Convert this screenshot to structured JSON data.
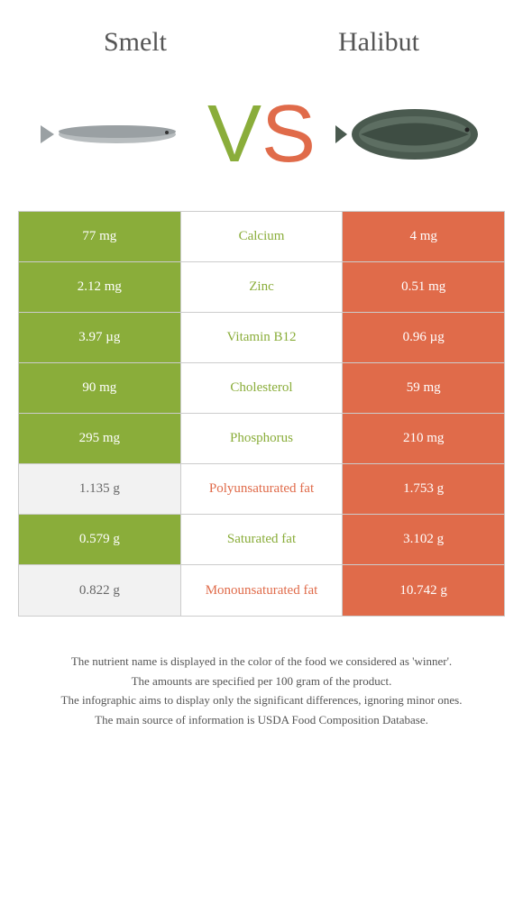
{
  "colors": {
    "left": "#8aad3a",
    "right": "#e06b4a",
    "neutral_bg": "#f2f2f2",
    "neutral_text": "#666666"
  },
  "header": {
    "left_title": "Smelt",
    "right_title": "Halibut",
    "vs_v": "V",
    "vs_s": "S"
  },
  "rows": [
    {
      "left": "77 mg",
      "label": "Calcium",
      "right": "4 mg",
      "winner": "left"
    },
    {
      "left": "2.12 mg",
      "label": "Zinc",
      "right": "0.51 mg",
      "winner": "left"
    },
    {
      "left": "3.97 µg",
      "label": "Vitamin B12",
      "right": "0.96 µg",
      "winner": "left"
    },
    {
      "left": "90 mg",
      "label": "Cholesterol",
      "right": "59 mg",
      "winner": "left"
    },
    {
      "left": "295 mg",
      "label": "Phosphorus",
      "right": "210 mg",
      "winner": "left"
    },
    {
      "left": "1.135 g",
      "label": "Polyunsaturated fat",
      "right": "1.753 g",
      "winner": "right"
    },
    {
      "left": "0.579 g",
      "label": "Saturated fat",
      "right": "3.102 g",
      "winner": "left"
    },
    {
      "left": "0.822 g",
      "label": "Monounsaturated fat",
      "right": "10.742 g",
      "winner": "right"
    }
  ],
  "footer": {
    "line1": "The nutrient name is displayed in the color of the food we considered as 'winner'.",
    "line2": "The amounts are specified per 100 gram of the product.",
    "line3": "The infographic aims to display only the significant differences, ignoring minor ones.",
    "line4": "The main source of information is USDA Food Composition Database."
  }
}
